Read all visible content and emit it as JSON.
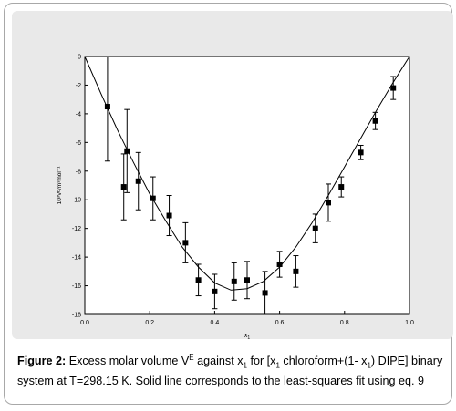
{
  "figure": {
    "label": "Figure 2:",
    "caption_prefix": "Excess molar volume V",
    "caption_sup": "E",
    "caption_mid1": " against x",
    "caption_sub1": "1",
    "caption_mid2": " for [x",
    "caption_sub2": "1",
    "caption_mid3": " chloroform+(1- x",
    "caption_sub3": "1",
    "caption_rest": ") DIPE] binary system at T=298.15 K. Solid line corresponds to the least-squares fit using eq. 9"
  },
  "chart_data": {
    "type": "scatter",
    "title": "",
    "xlabel": "x",
    "xlabel_sub": "1",
    "ylabel": "10³Vᴱ/m³mol⁻¹",
    "xlim": [
      0.0,
      1.0
    ],
    "ylim": [
      -18,
      0
    ],
    "x_ticks": [
      "0.0",
      "0.2",
      "0.4",
      "0.6",
      "0.8",
      "1.0"
    ],
    "y_ticks": [
      "0",
      "-2",
      "-4",
      "-6",
      "-8",
      "-10",
      "-12",
      "-14",
      "-16",
      "-18"
    ],
    "grid": false,
    "series": [
      {
        "kind": "points_with_error",
        "x": [
          0.07,
          0.12,
          0.13,
          0.165,
          0.21,
          0.26,
          0.31,
          0.35,
          0.4,
          0.46,
          0.5,
          0.555,
          0.6,
          0.65,
          0.71,
          0.75,
          0.79,
          0.85,
          0.895,
          0.95
        ],
        "y": [
          -3.5,
          -9.1,
          -6.6,
          -8.7,
          -9.9,
          -11.1,
          -13.0,
          -15.6,
          -16.4,
          -15.7,
          -15.6,
          -16.5,
          -14.5,
          -15.0,
          -12.0,
          -10.2,
          -9.1,
          -6.7,
          -4.5,
          -2.2
        ],
        "err": [
          3.8,
          2.3,
          2.9,
          2.0,
          1.5,
          1.4,
          1.4,
          1.1,
          1.2,
          1.3,
          1.3,
          1.5,
          0.9,
          1.1,
          1.0,
          1.3,
          0.7,
          0.5,
          0.6,
          0.8
        ]
      },
      {
        "kind": "fit_line",
        "x": [
          0.0,
          0.05,
          0.1,
          0.15,
          0.2,
          0.25,
          0.3,
          0.35,
          0.4,
          0.45,
          0.5,
          0.55,
          0.6,
          0.65,
          0.7,
          0.75,
          0.8,
          0.85,
          0.9,
          0.95,
          1.0
        ],
        "y": [
          0.0,
          -2.6,
          -5.1,
          -7.4,
          -9.6,
          -11.5,
          -13.3,
          -14.7,
          -15.8,
          -16.3,
          -16.2,
          -15.7,
          -14.7,
          -13.3,
          -11.6,
          -9.7,
          -7.7,
          -5.7,
          -3.7,
          -1.8,
          0.0
        ]
      }
    ]
  }
}
